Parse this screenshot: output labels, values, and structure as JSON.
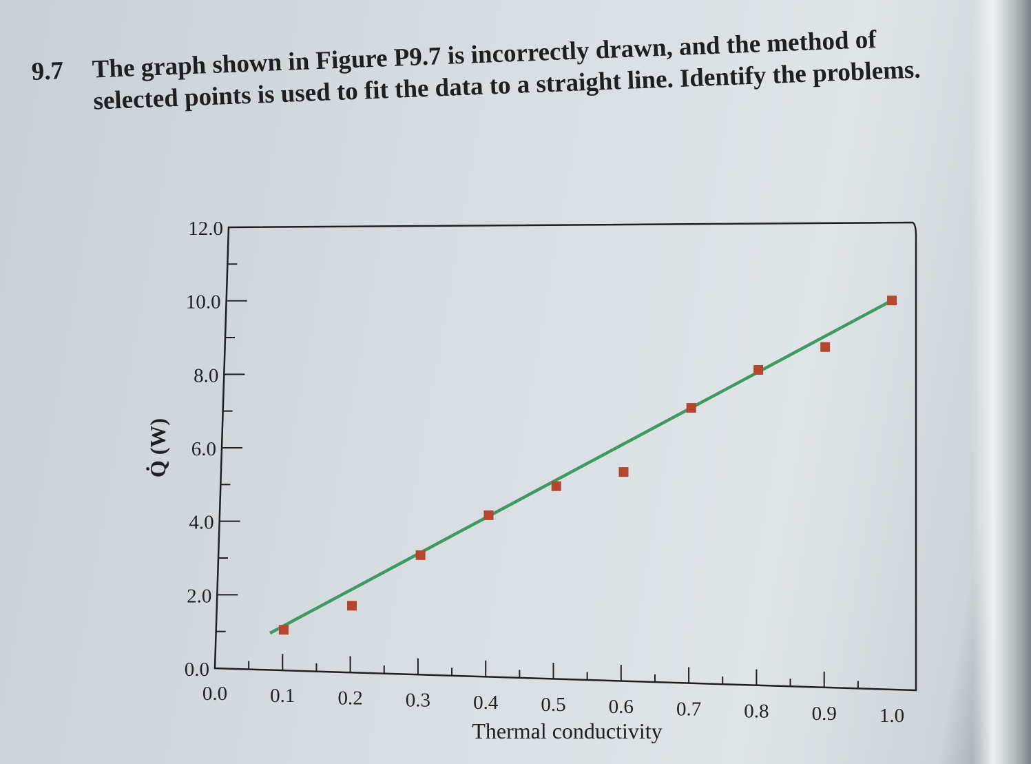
{
  "problem": {
    "number": "9.7",
    "text": "The graph shown in Figure P9.7 is incorrectly drawn, and the method of selected points is used to fit the data to a straight line. Identify the problems."
  },
  "chart_data": {
    "type": "scatter",
    "xlabel": "Thermal conductivity",
    "ylabel": "Q̇ (W)",
    "xlim": [
      0.0,
      1.0
    ],
    "ylim": [
      0.0,
      12.0
    ],
    "x_ticks": [
      "0.0",
      "0.1",
      "0.2",
      "0.3",
      "0.4",
      "0.5",
      "0.6",
      "0.7",
      "0.8",
      "0.9",
      "1.0"
    ],
    "y_ticks": [
      "0.0",
      "2.0",
      "4.0",
      "6.0",
      "8.0",
      "10.0",
      "12.0"
    ],
    "series": [
      {
        "type": "scatter",
        "x": [
          0.1,
          0.2,
          0.3,
          0.4,
          0.5,
          0.6,
          0.7,
          0.8,
          0.9,
          1.0
        ],
        "y": [
          1.1,
          1.8,
          3.2,
          4.3,
          5.1,
          5.5,
          7.2,
          8.2,
          8.8,
          10.0
        ]
      },
      {
        "type": "line",
        "x": [
          0.08,
          1.0
        ],
        "y": [
          1.0,
          10.0
        ]
      }
    ],
    "colors": {
      "points": "#b5472f",
      "line": "#3f9a62"
    },
    "grid": false
  }
}
